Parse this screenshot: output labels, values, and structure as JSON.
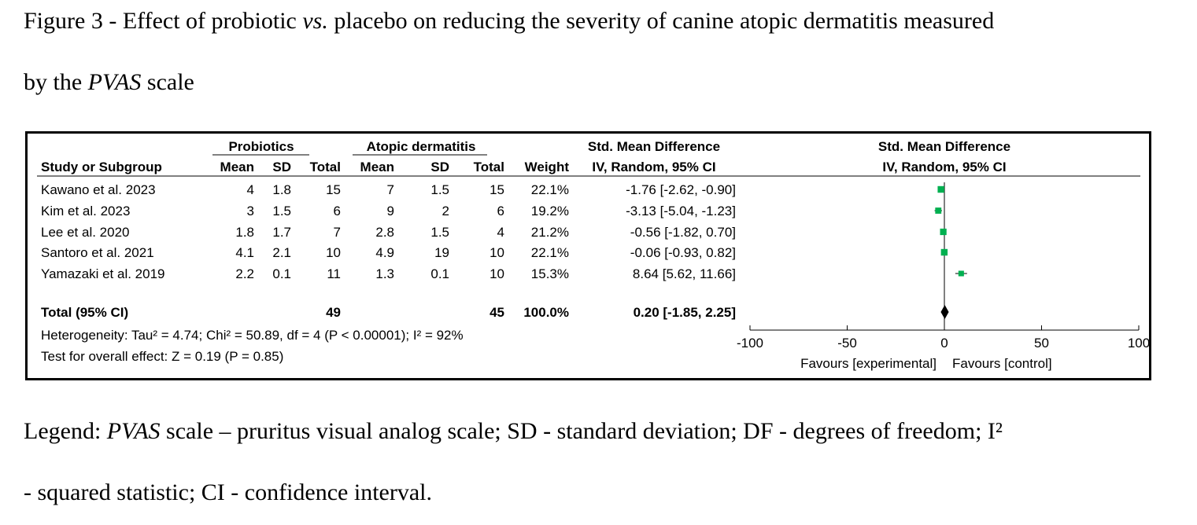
{
  "caption": {
    "line1_pre": "Figure 3 - Effect of probiotic ",
    "line1_italic": "vs.",
    "line1_post": " placebo on reducing the severity of canine atopic dermatitis measured",
    "line2_pre": "by the ",
    "line2_italic": "PVAS",
    "line2_post": " scale"
  },
  "legend": {
    "line1_pre": "Legend: ",
    "line1_italic": "PVAS",
    "line1_post": " scale – pruritus visual analog scale; SD - standard deviation; DF - degrees of freedom; I²",
    "line2": "- squared statistic; CI - confidence interval."
  },
  "table": {
    "group_headers": [
      "Probiotics",
      "Atopic dermatitis",
      "Std. Mean Difference",
      "Std. Mean Difference"
    ],
    "column_headers": [
      "Study or Subgroup",
      "Mean",
      "SD",
      "Total",
      "Mean",
      "SD",
      "Total",
      "Weight",
      "IV, Random, 95% CI",
      "IV, Random, 95% CI"
    ],
    "rows": [
      {
        "study": "Kawano et al. 2023",
        "mean1": "4",
        "sd1": "1.8",
        "total1": "15",
        "mean2": "7",
        "sd2": "1.5",
        "total2": "15",
        "weight": "22.1%",
        "smd": "-1.76 [-2.62, -0.90]"
      },
      {
        "study": "Kim et al. 2023",
        "mean1": "3",
        "sd1": "1.5",
        "total1": "6",
        "mean2": "9",
        "sd2": "2",
        "total2": "6",
        "weight": "19.2%",
        "smd": "-3.13 [-5.04, -1.23]"
      },
      {
        "study": "Lee et al. 2020",
        "mean1": "1.8",
        "sd1": "1.7",
        "total1": "7",
        "mean2": "2.8",
        "sd2": "1.5",
        "total2": "4",
        "weight": "21.2%",
        "smd": "-0.56 [-1.82, 0.70]"
      },
      {
        "study": "Santoro et al. 2021",
        "mean1": "4.1",
        "sd1": "2.1",
        "total1": "10",
        "mean2": "4.9",
        "sd2": "19",
        "total2": "10",
        "weight": "22.1%",
        "smd": "-0.06 [-0.93, 0.82]"
      },
      {
        "study": "Yamazaki et al. 2019",
        "mean1": "2.2",
        "sd1": "0.1",
        "total1": "11",
        "mean2": "1.3",
        "sd2": "0.1",
        "total2": "10",
        "weight": "15.3%",
        "smd": "8.64 [5.62, 11.66]"
      }
    ],
    "total_row": {
      "label": "Total (95% CI)",
      "total1": "49",
      "total2": "45",
      "weight": "100.0%",
      "smd": "0.20 [-1.85, 2.25]"
    },
    "heterogeneity": "Heterogeneity: Tau² = 4.74; Chi² = 50.89, df = 4 (P < 0.00001); I² = 92%",
    "overall_effect": "Test for overall effect: Z = 0.19 (P = 0.85)"
  },
  "chart_data": {
    "type": "scatter",
    "subtype": "forest_plot",
    "title": "Std. Mean Difference IV, Random, 95% CI",
    "xlim": [
      -100,
      100
    ],
    "xticks": [
      -100,
      -50,
      0,
      50,
      100
    ],
    "xtick_labels": [
      "-100",
      "-50",
      "0",
      "50",
      "100"
    ],
    "favours_left": "Favours [experimental]",
    "favours_right": "Favours [control]",
    "marker_color": "#00b050",
    "studies": [
      {
        "label": "Kawano et al. 2023",
        "estimate": -1.76,
        "ci_low": -2.62,
        "ci_high": -0.9,
        "weight": 22.1
      },
      {
        "label": "Kim et al. 2023",
        "estimate": -3.13,
        "ci_low": -5.04,
        "ci_high": -1.23,
        "weight": 19.2
      },
      {
        "label": "Lee et al. 2020",
        "estimate": -0.56,
        "ci_low": -1.82,
        "ci_high": 0.7,
        "weight": 21.2
      },
      {
        "label": "Santoro et al. 2021",
        "estimate": -0.06,
        "ci_low": -0.93,
        "ci_high": 0.82,
        "weight": 22.1
      },
      {
        "label": "Yamazaki et al. 2019",
        "estimate": 8.64,
        "ci_low": 5.62,
        "ci_high": 11.66,
        "weight": 15.3
      }
    ],
    "pooled": {
      "label": "Total (95% CI)",
      "estimate": 0.2,
      "ci_low": -1.85,
      "ci_high": 2.25
    }
  }
}
